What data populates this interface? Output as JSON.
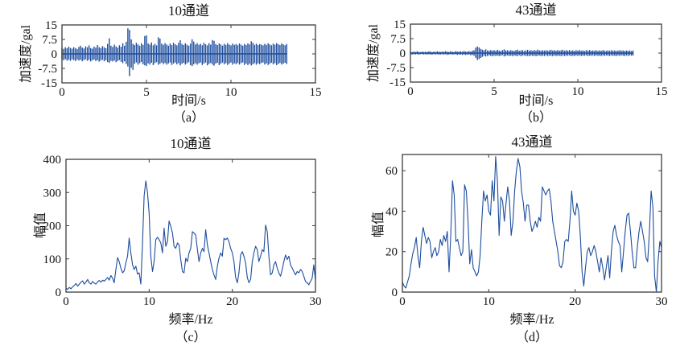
{
  "style": {
    "line_color": "#1d4d9e",
    "frame_color": "#3c3c3c",
    "tick_color": "#3c3c3c",
    "text_color": "#121212",
    "background": "#ffffff"
  },
  "chart_data": [
    {
      "id": "a",
      "type": "waveform",
      "title": "10通道",
      "xlabel": "时间/s",
      "ylabel": "加速度/gal",
      "panel_label": "（a）",
      "xlim": [
        0,
        15
      ],
      "ylim": [
        -15,
        15
      ],
      "xticks": [
        0,
        5,
        10,
        15
      ],
      "xtick_labels": [
        "0",
        "5",
        "10",
        "15"
      ],
      "yticks": [
        15,
        7.5,
        0,
        -7.5,
        -15
      ],
      "ytick_labels": [
        "15",
        "7.5",
        "0",
        "-7.5",
        "-15"
      ],
      "grid": false,
      "legend": false,
      "t_start": 0,
      "t_step": 0.1,
      "upper": [
        3.2,
        2.6,
        3.4,
        2.9,
        3.8,
        3.1,
        2.7,
        3.5,
        3.0,
        2.5,
        3.6,
        4.2,
        3.3,
        2.8,
        3.9,
        3.4,
        4.4,
        3.1,
        2.7,
        3.8,
        3.2,
        4.6,
        3.5,
        3.0,
        4.1,
        3.4,
        2.9,
        5.2,
        8.1,
        4.3,
        3.6,
        4.8,
        3.9,
        3.2,
        4.5,
        3.7,
        5.5,
        4.2,
        6.3,
        13.2,
        12.4,
        7.5,
        5.2,
        4.6,
        5.8,
        4.9,
        4.2,
        5.5,
        4.7,
        9.3,
        9.6,
        5.4,
        4.8,
        5.9,
        4.5,
        5.2,
        4.4,
        8.6,
        7.9,
        5.3,
        4.7,
        5.6,
        4.9,
        4.3,
        5.4,
        4.6,
        5.8,
        5.0,
        4.4,
        5.7,
        7.1,
        5.2,
        4.6,
        5.5,
        4.8,
        4.2,
        5.3,
        7.6,
        6.4,
        4.9,
        5.6,
        4.7,
        5.2,
        4.5,
        5.8,
        5.0,
        4.4,
        5.5,
        4.8,
        7.2,
        6.8,
        5.1,
        4.6,
        5.4,
        4.9,
        4.3,
        5.2,
        4.7,
        5.6,
        4.8,
        4.4,
        5.3,
        4.7,
        5.1,
        4.5,
        5.4,
        4.8,
        4.3,
        5.2,
        4.6,
        5.5,
        4.9,
        6.6,
        5.8,
        4.7,
        5.3,
        4.6,
        5.1,
        4.8,
        4.4,
        5.2,
        4.7,
        5.5,
        4.9,
        4.5,
        5.3,
        4.8,
        5.6,
        5.0,
        4.6,
        5.4,
        4.9,
        4.5,
        5.1
      ],
      "lower": [
        -2.9,
        -3.3,
        -2.7,
        -3.5,
        -3.0,
        -3.6,
        -2.8,
        -3.2,
        -3.7,
        -2.9,
        -3.4,
        -3.0,
        -3.8,
        -3.2,
        -2.8,
        -3.6,
        -3.1,
        -3.9,
        -3.3,
        -2.9,
        -3.7,
        -3.2,
        -4.0,
        -3.4,
        -3.0,
        -3.8,
        -3.3,
        -4.2,
        -4.6,
        -3.6,
        -3.9,
        -3.4,
        -4.3,
        -3.7,
        -3.2,
        -4.1,
        -4.8,
        -3.8,
        -5.2,
        -6.5,
        -11.5,
        -7.2,
        -8.3,
        -5.1,
        -4.4,
        -5.6,
        -4.8,
        -4.2,
        -5.4,
        -5.9,
        -6.2,
        -4.9,
        -5.5,
        -4.6,
        -5.8,
        -4.8,
        -4.3,
        -5.6,
        -5.1,
        -4.5,
        -5.3,
        -4.7,
        -5.6,
        -4.9,
        -4.4,
        -5.7,
        -5.0,
        -4.5,
        -5.4,
        -4.8,
        -5.9,
        -5.1,
        -4.6,
        -5.5,
        -4.9,
        -4.3,
        -5.8,
        -6.3,
        -5.4,
        -4.8,
        -5.6,
        -4.9,
        -4.4,
        -5.7,
        -5.0,
        -4.5,
        -5.9,
        -5.2,
        -4.7,
        -5.5,
        -6.1,
        -5.0,
        -4.6,
        -5.8,
        -5.1,
        -4.5,
        -5.4,
        -4.8,
        -5.7,
        -5.0,
        -4.5,
        -5.6,
        -4.9,
        -5.3,
        -4.7,
        -5.5,
        -4.8,
        -4.4,
        -5.7,
        -5.0,
        -5.8,
        -5.1,
        -6.0,
        -5.4,
        -4.8,
        -5.6,
        -4.9,
        -5.3,
        -4.7,
        -4.4,
        -5.5,
        -4.9,
        -5.7,
        -5.1,
        -4.6,
        -5.4,
        -4.8,
        -5.8,
        -5.2,
        -4.7,
        -5.5,
        -5.0,
        -4.6,
        -5.2
      ]
    },
    {
      "id": "b",
      "type": "waveform",
      "title": "43通道",
      "xlabel": "时间/s",
      "ylabel": "加速度/gal",
      "panel_label": "（b）",
      "xlim": [
        0,
        15
      ],
      "ylim": [
        -15,
        15
      ],
      "xticks": [
        0,
        5,
        10,
        15
      ],
      "xtick_labels": [
        "0",
        "5",
        "10",
        "15"
      ],
      "yticks": [
        15,
        7.5,
        0,
        -7.5,
        -15
      ],
      "ytick_labels": [
        "15",
        "7.5",
        "0",
        "-7.5",
        "-15"
      ],
      "grid": false,
      "legend": false,
      "t_start": 0,
      "t_step": 0.1,
      "upper": [
        0.7,
        0.5,
        0.8,
        0.6,
        0.9,
        0.6,
        0.5,
        0.8,
        0.6,
        0.7,
        0.6,
        0.9,
        0.7,
        0.5,
        0.8,
        0.6,
        0.9,
        0.7,
        0.6,
        0.8,
        0.7,
        1.0,
        0.7,
        0.6,
        0.9,
        0.7,
        0.6,
        1.0,
        0.8,
        0.7,
        0.9,
        0.7,
        1.1,
        0.8,
        0.7,
        1.0,
        0.8,
        1.2,
        1.5,
        2.8,
        3.4,
        2.9,
        2.2,
        1.8,
        1.5,
        1.9,
        1.4,
        1.2,
        1.6,
        1.3,
        1.5,
        1.2,
        1.7,
        1.3,
        1.1,
        1.6,
        1.9,
        1.3,
        1.5,
        1.2,
        1.6,
        1.3,
        1.1,
        1.5,
        1.8,
        1.2,
        1.4,
        1.6,
        1.1,
        1.4,
        1.7,
        1.3,
        1.5,
        1.2,
        1.6,
        1.3,
        1.8,
        1.4,
        1.2,
        1.5,
        1.3,
        1.6,
        1.2,
        1.4,
        1.7,
        1.3,
        1.5,
        1.2,
        1.6,
        1.3,
        1.4,
        1.7,
        1.2,
        1.5,
        1.3,
        1.6,
        1.2,
        1.4,
        1.1,
        1.5,
        1.3,
        1.6,
        1.2,
        1.4,
        1.1,
        1.5,
        1.3,
        1.6,
        1.2,
        1.4,
        1.2,
        1.5,
        1.1,
        1.4,
        1.2,
        1.5,
        1.3,
        1.1,
        1.4,
        1.2,
        1.5,
        1.2,
        1.4,
        1.1,
        1.3,
        1.5,
        1.2,
        1.4,
        1.1,
        1.3,
        1.2,
        1.4,
        1.1,
        1.3
      ],
      "lower": [
        -0.6,
        -0.8,
        -0.5,
        -0.7,
        -0.6,
        -0.8,
        -0.6,
        -0.5,
        -0.7,
        -0.6,
        -0.8,
        -0.6,
        -0.7,
        -0.8,
        -0.5,
        -0.7,
        -0.6,
        -0.8,
        -0.7,
        -0.6,
        -0.8,
        -0.6,
        -0.9,
        -0.7,
        -0.6,
        -0.8,
        -0.7,
        -0.6,
        -0.9,
        -0.7,
        -0.8,
        -0.9,
        -0.7,
        -1.0,
        -0.8,
        -0.7,
        -1.1,
        -0.9,
        -1.3,
        -2.4,
        -3.6,
        -3.1,
        -2.5,
        -1.9,
        -1.4,
        -1.7,
        -1.5,
        -1.1,
        -1.4,
        -1.6,
        -1.3,
        -1.5,
        -1.2,
        -1.6,
        -1.3,
        -1.1,
        -1.7,
        -1.4,
        -1.2,
        -1.5,
        -1.3,
        -1.6,
        -1.2,
        -1.4,
        -1.5,
        -1.1,
        -1.6,
        -1.3,
        -1.2,
        -1.5,
        -1.4,
        -1.6,
        -1.2,
        -1.5,
        -1.3,
        -1.6,
        -1.4,
        -1.2,
        -1.5,
        -1.3,
        -1.6,
        -1.2,
        -1.5,
        -1.3,
        -1.4,
        -1.6,
        -1.2,
        -1.5,
        -1.3,
        -1.4,
        -1.6,
        -1.2,
        -1.5,
        -1.3,
        -1.4,
        -1.2,
        -1.6,
        -1.3,
        -1.5,
        -1.2,
        -1.4,
        -1.2,
        -1.5,
        -1.3,
        -1.4,
        -1.2,
        -1.5,
        -1.3,
        -1.4,
        -1.2,
        -1.5,
        -1.2,
        -1.4,
        -1.3,
        -1.5,
        -1.2,
        -1.4,
        -1.2,
        -1.3,
        -1.5,
        -1.2,
        -1.4,
        -1.3,
        -1.5,
        -1.2,
        -1.4,
        -1.2,
        -1.3,
        -1.5,
        -1.2,
        -1.4,
        -1.2,
        -1.3,
        -1.2
      ]
    },
    {
      "id": "c",
      "type": "line",
      "title": "10通道",
      "xlabel": "频率/Hz",
      "ylabel": "幅值",
      "panel_label": "（c）",
      "xlim": [
        0,
        30
      ],
      "ylim": [
        0,
        400
      ],
      "xticks": [
        0,
        10,
        20,
        30
      ],
      "xtick_labels": [
        "0",
        "10",
        "20",
        "30"
      ],
      "yticks": [
        0,
        100,
        200,
        300,
        400
      ],
      "ytick_labels": [
        "0",
        "100",
        "200",
        "300",
        "400"
      ],
      "grid": false,
      "legend": false,
      "x_start": 0,
      "x_step": 0.2,
      "values": [
        12,
        8,
        14,
        10,
        16,
        20,
        26,
        18,
        24,
        30,
        34,
        24,
        30,
        38,
        28,
        24,
        32,
        27,
        24,
        31,
        35,
        30,
        36,
        33,
        38,
        44,
        36,
        50,
        42,
        28,
        68,
        104,
        92,
        72,
        58,
        64,
        88,
        108,
        163,
        118,
        82,
        68,
        78,
        54,
        58,
        24,
        148,
        290,
        335,
        300,
        238,
        108,
        62,
        92,
        158,
        165,
        158,
        148,
        118,
        193,
        138,
        152,
        214,
        198,
        178,
        138,
        132,
        148,
        142,
        98,
        62,
        58,
        102,
        92,
        118,
        132,
        182,
        178,
        172,
        128,
        92,
        118,
        132,
        122,
        188,
        142,
        118,
        92,
        68,
        52,
        38,
        78,
        102,
        118,
        108,
        162,
        158,
        163,
        152,
        132,
        118,
        92,
        44,
        28,
        58,
        112,
        122,
        108,
        88,
        44,
        28,
        38,
        92,
        118,
        138,
        128,
        92,
        108,
        128,
        122,
        202,
        182,
        108,
        52,
        58,
        82,
        92,
        72,
        58,
        48,
        68,
        92,
        112,
        98,
        108,
        82,
        72,
        62,
        52,
        62,
        58,
        68,
        62,
        48,
        32,
        28,
        22,
        32,
        42,
        82,
        35
      ]
    },
    {
      "id": "d",
      "type": "line",
      "title": "43通道",
      "xlabel": "频率/Hz",
      "ylabel": "幅值",
      "panel_label": "（d）",
      "xlim": [
        0,
        30
      ],
      "ylim": [
        0,
        68
      ],
      "xticks": [
        0,
        10,
        20,
        30
      ],
      "xtick_labels": [
        "0",
        "10",
        "20",
        "30"
      ],
      "yticks": [
        0,
        20,
        40,
        60
      ],
      "ytick_labels": [
        "0",
        "20",
        "40",
        "60"
      ],
      "grid": false,
      "legend": false,
      "x_start": 0,
      "x_step": 0.2,
      "values": [
        5,
        3,
        2,
        5,
        8,
        14,
        19,
        22,
        27,
        18,
        12,
        25,
        32,
        28,
        24,
        27,
        25,
        17,
        20,
        22,
        18,
        20,
        26,
        23,
        28,
        25,
        30,
        10,
        28,
        55,
        48,
        25,
        26,
        22,
        18,
        20,
        53,
        50,
        35,
        14,
        21,
        12,
        10,
        8,
        10,
        18,
        35,
        50,
        45,
        48,
        40,
        38,
        55,
        45,
        67,
        55,
        28,
        47,
        45,
        35,
        44,
        52,
        45,
        28,
        35,
        50,
        60,
        66,
        62,
        50,
        44,
        35,
        43,
        43,
        35,
        30,
        32,
        35,
        32,
        37,
        35,
        52,
        50,
        48,
        50,
        51,
        45,
        35,
        30,
        25,
        20,
        13,
        12,
        15,
        25,
        26,
        25,
        35,
        50,
        40,
        38,
        44,
        40,
        28,
        10,
        3,
        12,
        20,
        22,
        18,
        20,
        23,
        20,
        15,
        10,
        17,
        12,
        6,
        12,
        18,
        7,
        20,
        30,
        33,
        28,
        25,
        23,
        10,
        20,
        30,
        38,
        39,
        30,
        20,
        12,
        12,
        22,
        30,
        35,
        30,
        25,
        17,
        15,
        30,
        50,
        42,
        8,
        0,
        15,
        25,
        22
      ]
    }
  ]
}
